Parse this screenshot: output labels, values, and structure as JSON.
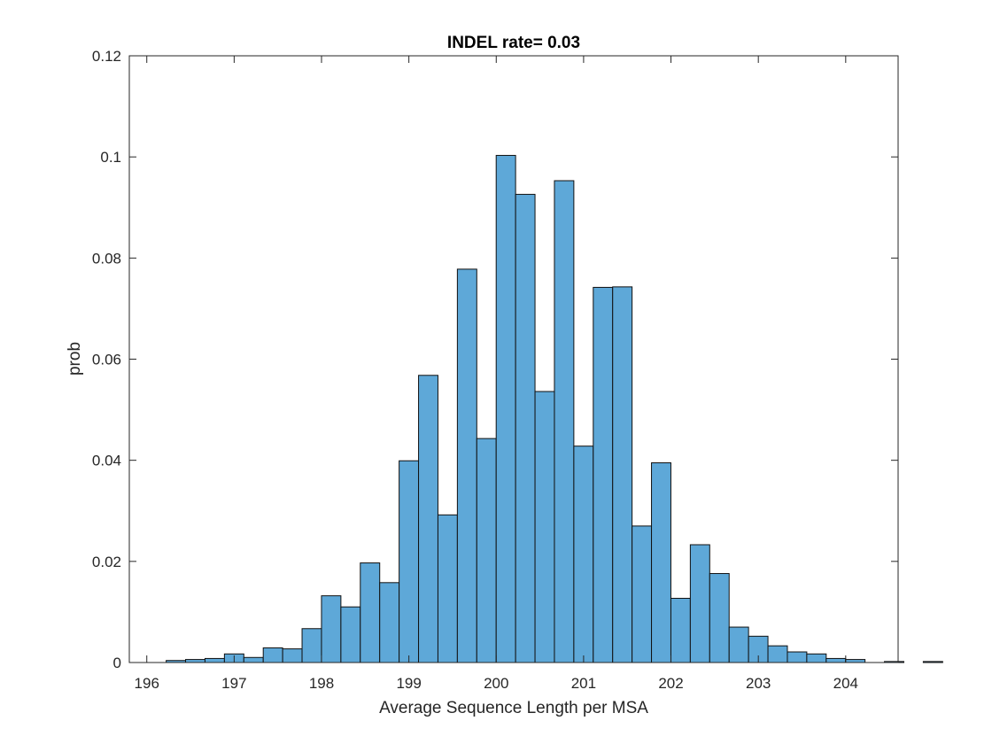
{
  "chart_data": {
    "type": "bar",
    "title": "INDEL rate= 0.03",
    "xlabel": "Average Sequence Length per MSA",
    "ylabel": "prob",
    "xlim": [
      195.8,
      204.6
    ],
    "ylim": [
      0,
      0.12
    ],
    "xticks": [
      "196",
      "197",
      "198",
      "199",
      "200",
      "201",
      "202",
      "203",
      "204"
    ],
    "yticks": [
      "0",
      "0.02",
      "0.04",
      "0.06",
      "0.08",
      "0.1",
      "0.12"
    ],
    "bin_width": 0.2222,
    "bin_start": 196.222,
    "grid": false,
    "values": [
      0.0004,
      0.0006,
      0.0008,
      0.0017,
      0.001,
      0.0029,
      0.0027,
      0.0067,
      0.0132,
      0.011,
      0.0197,
      0.0158,
      0.0399,
      0.0568,
      0.0292,
      0.0778,
      0.0443,
      0.1003,
      0.0926,
      0.0536,
      0.0953,
      0.0428,
      0.0742,
      0.0743,
      0.027,
      0.0395,
      0.0127,
      0.0233,
      0.0176,
      0.007,
      0.0052,
      0.0033,
      0.0021,
      0.0017,
      0.0008,
      0.0006,
      0,
      0.0002,
      0,
      0.0002
    ]
  }
}
